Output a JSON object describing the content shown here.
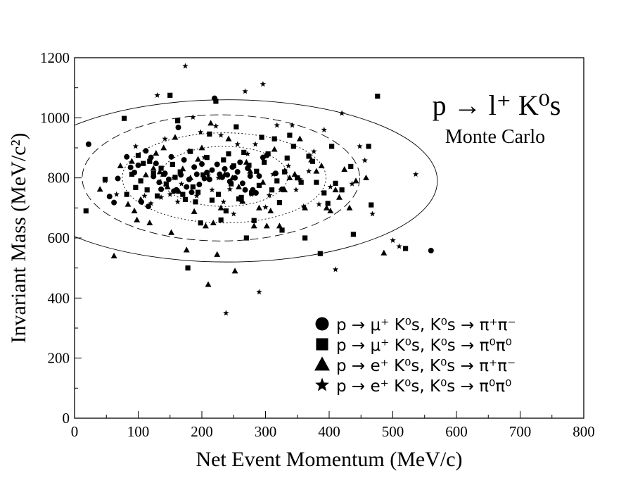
{
  "chart_data": {
    "type": "scatter",
    "title": "",
    "xlabel": "Net Event Momentum (MeV/c)",
    "ylabel": "Invariant Mass (MeV/c²)",
    "xlim": [
      0,
      800
    ],
    "ylim": [
      0,
      1200
    ],
    "xticks": [
      "0",
      "100",
      "200",
      "300",
      "400",
      "500",
      "600",
      "700",
      "800"
    ],
    "yticks": [
      "0",
      "200",
      "400",
      "600",
      "800",
      "1000",
      "1200"
    ],
    "grid": false,
    "annotation": {
      "text": "p → l⁺ K⁰s",
      "subtext": "Monte Carlo"
    },
    "legend": {
      "placement": "bottom-right",
      "entries": [
        {
          "marker": "circle",
          "label": "p → μ⁺ K⁰s, K⁰s → π⁺π⁻"
        },
        {
          "marker": "square",
          "label": "p → μ⁺ K⁰s, K⁰s → π⁰π⁰"
        },
        {
          "marker": "triangle",
          "label": "p → e⁺ K⁰s, K⁰s → π⁺π⁻"
        },
        {
          "marker": "star",
          "label": "p → e⁺ K⁰s, K⁰s → π⁰π⁰"
        }
      ]
    },
    "contours": [
      {
        "style": "solid",
        "cx": 240,
        "cy": 790,
        "rx": 330,
        "ry": 270
      },
      {
        "style": "dashed",
        "cx": 230,
        "cy": 800,
        "rx": 218,
        "ry": 210
      },
      {
        "style": "dotted",
        "cx": 235,
        "cy": 800,
        "rx": 160,
        "ry": 150
      },
      {
        "style": "dotted",
        "cx": 235,
        "cy": 805,
        "rx": 100,
        "ry": 100
      }
    ],
    "series": [
      {
        "marker": "circle",
        "points": [
          [
            22,
            912
          ],
          [
            55,
            738
          ],
          [
            62,
            718
          ],
          [
            68,
            798
          ],
          [
            82,
            870
          ],
          [
            88,
            835
          ],
          [
            94,
            818
          ],
          [
            100,
            842
          ],
          [
            105,
            720
          ],
          [
            112,
            890
          ],
          [
            116,
            705
          ],
          [
            120,
            868
          ],
          [
            124,
            805
          ],
          [
            128,
            848
          ],
          [
            133,
            785
          ],
          [
            136,
            762
          ],
          [
            142,
            815
          ],
          [
            148,
            795
          ],
          [
            152,
            870
          ],
          [
            156,
            756
          ],
          [
            160,
            760
          ],
          [
            163,
            968
          ],
          [
            167,
            810
          ],
          [
            172,
            860
          ],
          [
            176,
            770
          ],
          [
            180,
            795
          ],
          [
            184,
            752
          ],
          [
            188,
            836
          ],
          [
            192,
            812
          ],
          [
            196,
            778
          ],
          [
            200,
            846
          ],
          [
            204,
            798
          ],
          [
            208,
            818
          ],
          [
            212,
            795
          ],
          [
            216,
            826
          ],
          [
            220,
            1065
          ],
          [
            224,
            845
          ],
          [
            228,
            812
          ],
          [
            232,
            802
          ],
          [
            236,
            830
          ],
          [
            240,
            810
          ],
          [
            244,
            788
          ],
          [
            248,
            836
          ],
          [
            252,
            800
          ],
          [
            256,
            820
          ],
          [
            260,
            852
          ],
          [
            264,
            782
          ],
          [
            268,
            760
          ],
          [
            272,
            832
          ],
          [
            276,
            806
          ],
          [
            280,
            760
          ],
          [
            285,
            750
          ],
          [
            290,
            806
          ],
          [
            296,
            868
          ],
          [
            302,
            875
          ],
          [
            316,
            815
          ],
          [
            326,
            762
          ],
          [
            560,
            558
          ]
        ]
      },
      {
        "marker": "square",
        "points": [
          [
            18,
            690
          ],
          [
            48,
            795
          ],
          [
            78,
            998
          ],
          [
            82,
            745
          ],
          [
            90,
            812
          ],
          [
            96,
            768
          ],
          [
            100,
            875
          ],
          [
            104,
            790
          ],
          [
            108,
            848
          ],
          [
            114,
            760
          ],
          [
            118,
            855
          ],
          [
            124,
            815
          ],
          [
            130,
            740
          ],
          [
            136,
            832
          ],
          [
            140,
            812
          ],
          [
            144,
            780
          ],
          [
            150,
            1075
          ],
          [
            154,
            845
          ],
          [
            158,
            802
          ],
          [
            162,
            990
          ],
          [
            166,
            820
          ],
          [
            170,
            745
          ],
          [
            174,
            728
          ],
          [
            178,
            500
          ],
          [
            182,
            888
          ],
          [
            186,
            770
          ],
          [
            190,
            720
          ],
          [
            194,
            752
          ],
          [
            198,
            650
          ],
          [
            202,
            810
          ],
          [
            208,
            868
          ],
          [
            212,
            946
          ],
          [
            216,
            726
          ],
          [
            222,
            1055
          ],
          [
            226,
            745
          ],
          [
            230,
            660
          ],
          [
            234,
            860
          ],
          [
            238,
            690
          ],
          [
            242,
            880
          ],
          [
            246,
            780
          ],
          [
            250,
            840
          ],
          [
            254,
            970
          ],
          [
            258,
            730
          ],
          [
            262,
            735
          ],
          [
            266,
            885
          ],
          [
            270,
            600
          ],
          [
            274,
            842
          ],
          [
            278,
            750
          ],
          [
            282,
            658
          ],
          [
            286,
            822
          ],
          [
            290,
            775
          ],
          [
            294,
            935
          ],
          [
            298,
            852
          ],
          [
            304,
            880
          ],
          [
            310,
            760
          ],
          [
            314,
            930
          ],
          [
            318,
            790
          ],
          [
            322,
            718
          ],
          [
            326,
            626
          ],
          [
            330,
            820
          ],
          [
            334,
            866
          ],
          [
            338,
            942
          ],
          [
            344,
            905
          ],
          [
            350,
            800
          ],
          [
            356,
            785
          ],
          [
            362,
            600
          ],
          [
            368,
            872
          ],
          [
            374,
            855
          ],
          [
            380,
            785
          ],
          [
            386,
            548
          ],
          [
            392,
            750
          ],
          [
            398,
            715
          ],
          [
            404,
            905
          ],
          [
            410,
            782
          ],
          [
            420,
            760
          ],
          [
            434,
            838
          ],
          [
            438,
            612
          ],
          [
            462,
            905
          ],
          [
            466,
            710
          ],
          [
            476,
            1072
          ],
          [
            520,
            565
          ]
        ]
      },
      {
        "marker": "triangle",
        "points": [
          [
            40,
            762
          ],
          [
            62,
            540
          ],
          [
            72,
            840
          ],
          [
            84,
            712
          ],
          [
            90,
            855
          ],
          [
            94,
            690
          ],
          [
            98,
            660
          ],
          [
            104,
            728
          ],
          [
            112,
            810
          ],
          [
            118,
            650
          ],
          [
            124,
            832
          ],
          [
            128,
            882
          ],
          [
            134,
            820
          ],
          [
            140,
            900
          ],
          [
            146,
            770
          ],
          [
            152,
            618
          ],
          [
            158,
            935
          ],
          [
            164,
            755
          ],
          [
            170,
            830
          ],
          [
            176,
            560
          ],
          [
            182,
            800
          ],
          [
            188,
            688
          ],
          [
            194,
            862
          ],
          [
            200,
            900
          ],
          [
            206,
            640
          ],
          [
            210,
            445
          ],
          [
            214,
            982
          ],
          [
            218,
            650
          ],
          [
            224,
            545
          ],
          [
            230,
            700
          ],
          [
            236,
            812
          ],
          [
            242,
            930
          ],
          [
            248,
            800
          ],
          [
            252,
            490
          ],
          [
            258,
            770
          ],
          [
            264,
            722
          ],
          [
            270,
            852
          ],
          [
            276,
            822
          ],
          [
            282,
            640
          ],
          [
            290,
            700
          ],
          [
            296,
            785
          ],
          [
            302,
            640
          ],
          [
            308,
            690
          ],
          [
            314,
            895
          ],
          [
            322,
            640
          ],
          [
            330,
            760
          ],
          [
            338,
            800
          ],
          [
            346,
            812
          ],
          [
            354,
            930
          ],
          [
            362,
            700
          ],
          [
            372,
            860
          ],
          [
            380,
            822
          ],
          [
            388,
            840
          ],
          [
            396,
            700
          ],
          [
            402,
            690
          ],
          [
            410,
            760
          ],
          [
            416,
            735
          ],
          [
            424,
            828
          ],
          [
            432,
            700
          ],
          [
            442,
            790
          ],
          [
            458,
            800
          ],
          [
            486,
            550
          ]
        ]
      },
      {
        "marker": "star",
        "points": [
          [
            48,
            790
          ],
          [
            66,
            745
          ],
          [
            96,
            905
          ],
          [
            104,
            790
          ],
          [
            110,
            740
          ],
          [
            120,
            715
          ],
          [
            130,
            1075
          ],
          [
            136,
            735
          ],
          [
            142,
            930
          ],
          [
            150,
            745
          ],
          [
            156,
            800
          ],
          [
            162,
            720
          ],
          [
            168,
            780
          ],
          [
            174,
            1172
          ],
          [
            180,
            890
          ],
          [
            186,
            1002
          ],
          [
            192,
            740
          ],
          [
            198,
            952
          ],
          [
            204,
            868
          ],
          [
            210,
            808
          ],
          [
            216,
            760
          ],
          [
            222,
            972
          ],
          [
            226,
            800
          ],
          [
            230,
            942
          ],
          [
            234,
            720
          ],
          [
            238,
            350
          ],
          [
            244,
            762
          ],
          [
            250,
            680
          ],
          [
            256,
            912
          ],
          [
            262,
            720
          ],
          [
            268,
            1088
          ],
          [
            272,
            880
          ],
          [
            278,
            745
          ],
          [
            284,
            912
          ],
          [
            290,
            420
          ],
          [
            296,
            1112
          ],
          [
            300,
            702
          ],
          [
            306,
            742
          ],
          [
            312,
            812
          ],
          [
            318,
            975
          ],
          [
            324,
            760
          ],
          [
            330,
            825
          ],
          [
            336,
            840
          ],
          [
            342,
            975
          ],
          [
            348,
            760
          ],
          [
            354,
            795
          ],
          [
            360,
            705
          ],
          [
            368,
            822
          ],
          [
            376,
            888
          ],
          [
            384,
            712
          ],
          [
            392,
            960
          ],
          [
            402,
            770
          ],
          [
            410,
            495
          ],
          [
            420,
            1015
          ],
          [
            436,
            780
          ],
          [
            448,
            905
          ],
          [
            456,
            858
          ],
          [
            468,
            680
          ],
          [
            500,
            592
          ],
          [
            510,
            572
          ],
          [
            536,
            812
          ]
        ]
      }
    ]
  }
}
